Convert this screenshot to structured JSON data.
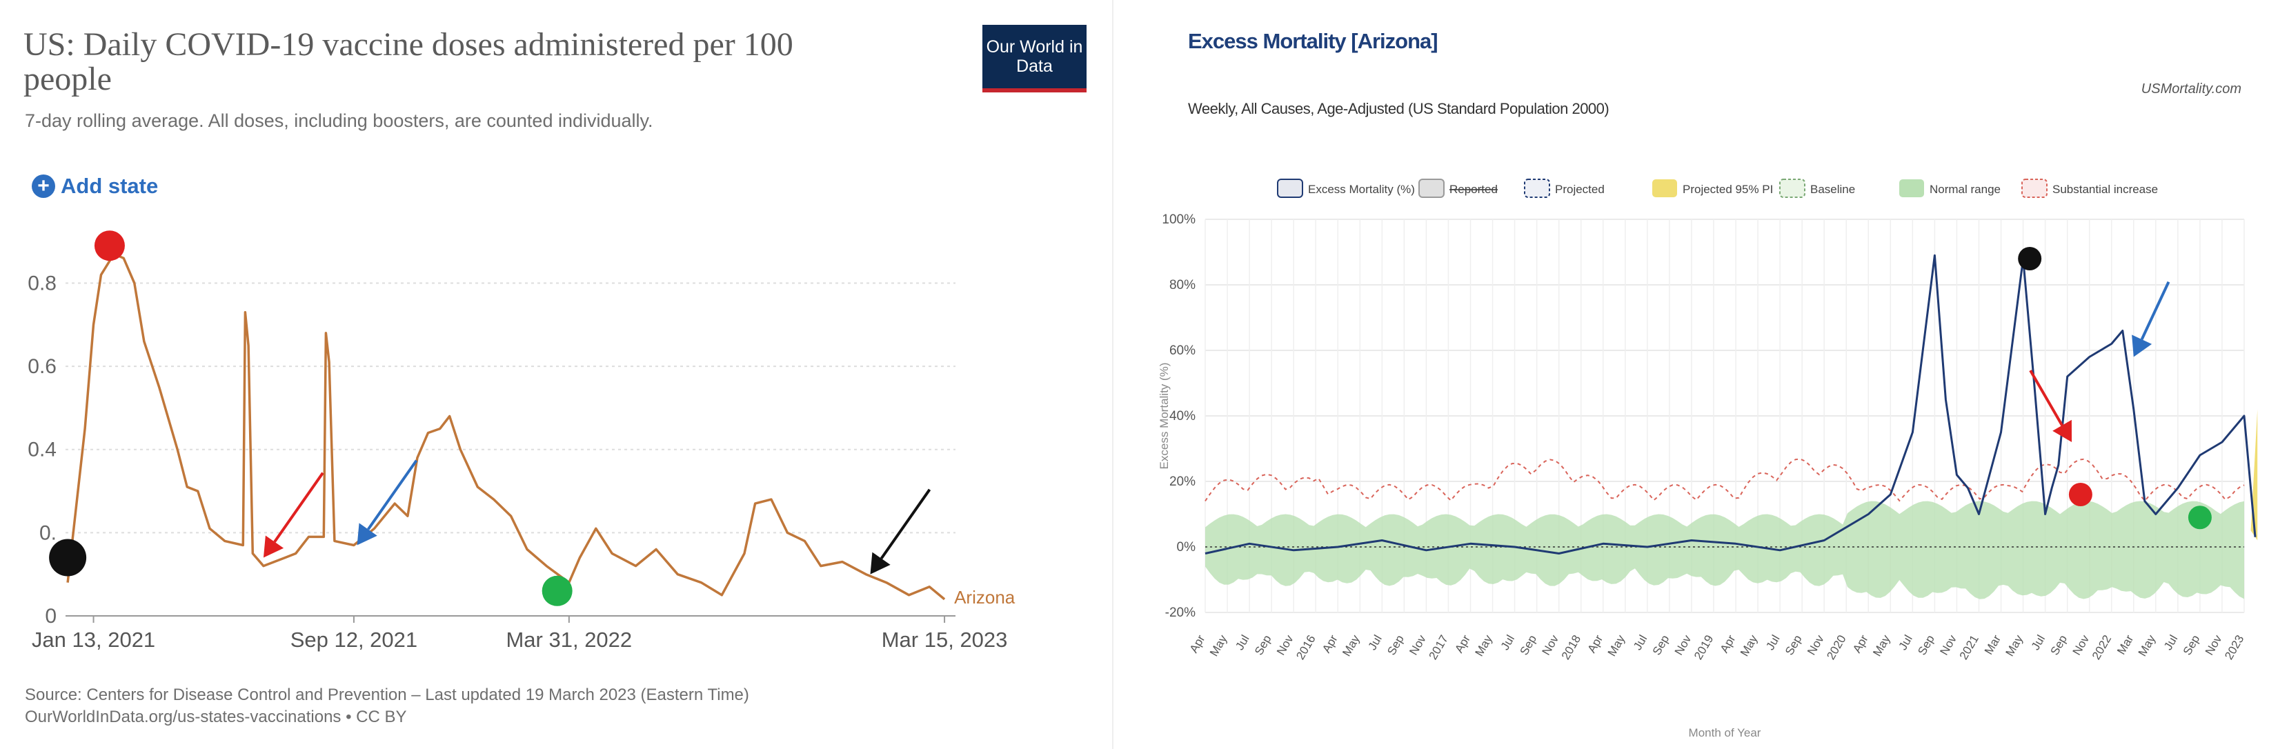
{
  "left": {
    "title": "US: Daily COVID-19 vaccine doses administered per 100 people",
    "subtitle": "7-day rolling average. All doses, including boosters, are counted individually.",
    "logo": "Our World in Data",
    "add_state_label": "Add state",
    "source_line1": "Source: Centers for Disease Control and Prevention – Last updated 19 March 2023 (Eastern Time)",
    "source_line2": "OurWorldInData.org/us-states-vaccinations • CC BY",
    "colors": {
      "line": "#c0773a",
      "logo_bg": "#0d2a52",
      "logo_accent": "#c6262e",
      "link": "#2d6ec0"
    }
  },
  "right": {
    "title": "Excess Mortality [Arizona]",
    "subtitle": "Weekly, All Causes, Age-Adjusted (US Standard Population 2000)",
    "site": "USMortality.com",
    "colors": {
      "excess": "#1f3a73",
      "band": "#b9e0b3",
      "substantial": "#d9645a",
      "projected_pi": "#f0dd72"
    }
  },
  "chart_data": [
    {
      "type": "line",
      "title": "US: Daily COVID-19 vaccine doses administered per 100 people",
      "subtitle": "7-day rolling average. All doses, including boosters, are counted individually.",
      "xlabel": "",
      "ylabel": "",
      "x_ticks": [
        "Jan 13, 2021",
        "Sep 12, 2021",
        "Mar 31, 2022",
        "Mar 15, 2023"
      ],
      "y_ticks": [
        0,
        0.2,
        0.4,
        0.6,
        0.8
      ],
      "y_tick_labels": [
        "0",
        "0.",
        "0.4",
        "0.6",
        "0.8"
      ],
      "ylim": [
        0,
        0.95
      ],
      "grid": "horizontal dotted",
      "series": [
        {
          "name": "Arizona",
          "x": [
            "2020-12-20",
            "2021-01-05",
            "2021-01-13",
            "2021-01-20",
            "2021-02-01",
            "2021-02-10",
            "2021-02-20",
            "2021-03-01",
            "2021-03-15",
            "2021-04-01",
            "2021-04-10",
            "2021-04-20",
            "2021-05-01",
            "2021-05-15",
            "2021-06-01",
            "2021-06-03",
            "2021-06-06",
            "2021-06-10",
            "2021-06-20",
            "2021-07-10",
            "2021-07-20",
            "2021-08-01",
            "2021-08-15",
            "2021-08-17",
            "2021-08-20",
            "2021-08-25",
            "2021-09-12",
            "2021-10-01",
            "2021-10-20",
            "2021-11-01",
            "2021-11-10",
            "2021-11-20",
            "2021-12-01",
            "2021-12-10",
            "2021-12-20",
            "2022-01-05",
            "2022-01-20",
            "2022-02-05",
            "2022-02-20",
            "2022-03-10",
            "2022-03-31",
            "2022-04-10",
            "2022-04-25",
            "2022-05-10",
            "2022-06-01",
            "2022-06-20",
            "2022-07-10",
            "2022-08-01",
            "2022-08-20",
            "2022-09-10",
            "2022-09-20",
            "2022-10-05",
            "2022-10-20",
            "2022-11-05",
            "2022-11-20",
            "2022-12-10",
            "2023-01-01",
            "2023-01-20",
            "2023-02-10",
            "2023-03-01",
            "2023-03-15"
          ],
          "values": [
            0.08,
            0.45,
            0.7,
            0.82,
            0.87,
            0.86,
            0.8,
            0.66,
            0.55,
            0.4,
            0.31,
            0.3,
            0.21,
            0.18,
            0.17,
            0.73,
            0.65,
            0.15,
            0.12,
            0.14,
            0.15,
            0.19,
            0.19,
            0.68,
            0.61,
            0.18,
            0.17,
            0.21,
            0.27,
            0.24,
            0.38,
            0.44,
            0.45,
            0.48,
            0.4,
            0.31,
            0.28,
            0.24,
            0.16,
            0.12,
            0.08,
            0.14,
            0.21,
            0.15,
            0.12,
            0.16,
            0.1,
            0.08,
            0.05,
            0.15,
            0.27,
            0.28,
            0.2,
            0.18,
            0.12,
            0.13,
            0.1,
            0.08,
            0.05,
            0.07,
            0.04
          ]
        }
      ],
      "annotations": [
        {
          "kind": "dot",
          "color": "#e02020",
          "x": "2021-01-28",
          "y": 0.89
        },
        {
          "kind": "dot",
          "color": "#111111",
          "x": "2020-12-20",
          "y": 0.14
        },
        {
          "kind": "arrow",
          "color": "#e02020",
          "x": "2021-06-20",
          "y": 0.14
        },
        {
          "kind": "arrow",
          "color": "#2d6ec0",
          "x": "2021-09-15",
          "y": 0.17
        },
        {
          "kind": "dot",
          "color": "#21b14b",
          "x": "2022-03-20",
          "y": 0.06
        },
        {
          "kind": "arrow",
          "color": "#111111",
          "x": "2023-01-05",
          "y": 0.1
        }
      ]
    },
    {
      "type": "line",
      "title": "Excess Mortality [Arizona]",
      "subtitle": "Weekly, All Causes, Age-Adjusted (US Standard Population 2000)",
      "xlabel": "Month of Year",
      "ylabel": "Excess Mortality (%)",
      "legend_placement": "top",
      "legend": [
        "Excess Mortality (%)",
        "Reported",
        "Projected",
        "Projected 95% PI",
        "Baseline",
        "Normal range",
        "Substantial increase"
      ],
      "y_ticks": [
        -20,
        0,
        20,
        40,
        60,
        80,
        100
      ],
      "y_tick_labels": [
        "-20%",
        "0%",
        "20%",
        "40%",
        "60%",
        "80%",
        "100%"
      ],
      "ylim": [
        -20,
        100
      ],
      "x_ticks": [
        "Apr",
        "May",
        "Jul",
        "Sep",
        "Nov",
        "2016",
        "Apr",
        "May",
        "Jul",
        "Sep",
        "Nov",
        "2017",
        "Apr",
        "May",
        "Jul",
        "Sep",
        "Nov",
        "2018",
        "Apr",
        "May",
        "Jul",
        "Sep",
        "Nov",
        "2019",
        "Apr",
        "May",
        "Jul",
        "Sep",
        "Nov",
        "2020",
        "Apr",
        "May",
        "Jul",
        "Sep",
        "Nov",
        "2021",
        "Mar",
        "May",
        "Jul",
        "Sep",
        "Nov",
        "2022",
        "Mar",
        "May",
        "Jul",
        "Sep",
        "Nov",
        "2023"
      ],
      "series": [
        {
          "name": "Excess Mortality (%)",
          "x": [
            0,
            2,
            4,
            6,
            8,
            10,
            12,
            14,
            16,
            18,
            20,
            22,
            24,
            26,
            28,
            30,
            31,
            32,
            33,
            33.5,
            34,
            34.5,
            35,
            36,
            37,
            37.5,
            38,
            38.3,
            38.6,
            39,
            40,
            41,
            41.5,
            42,
            42.5,
            43,
            44,
            45,
            46,
            47,
            47.5
          ],
          "values": [
            -2,
            1,
            -1,
            0,
            2,
            -1,
            1,
            0,
            -2,
            1,
            0,
            2,
            1,
            -1,
            2,
            10,
            16,
            35,
            89,
            45,
            22,
            18,
            10,
            35,
            88,
            50,
            10,
            18,
            25,
            52,
            58,
            62,
            66,
            42,
            14,
            10,
            18,
            28,
            32,
            40,
            3
          ]
        }
      ],
      "annotations": [
        {
          "kind": "dot",
          "color": "#111111",
          "x": 37.3,
          "y": 88
        },
        {
          "kind": "arrow",
          "color": "#e02020",
          "x": 39.2,
          "y": 32
        },
        {
          "kind": "dot",
          "color": "#e02020",
          "x": 39.6,
          "y": 16
        },
        {
          "kind": "arrow",
          "color": "#2d6ec0",
          "x": 42.0,
          "y": 58
        },
        {
          "kind": "dot",
          "color": "#21b14b",
          "x": 45.0,
          "y": 9
        },
        {
          "kind": "arrow",
          "color": "#111111",
          "x": 48.7,
          "y": 40
        }
      ]
    }
  ]
}
